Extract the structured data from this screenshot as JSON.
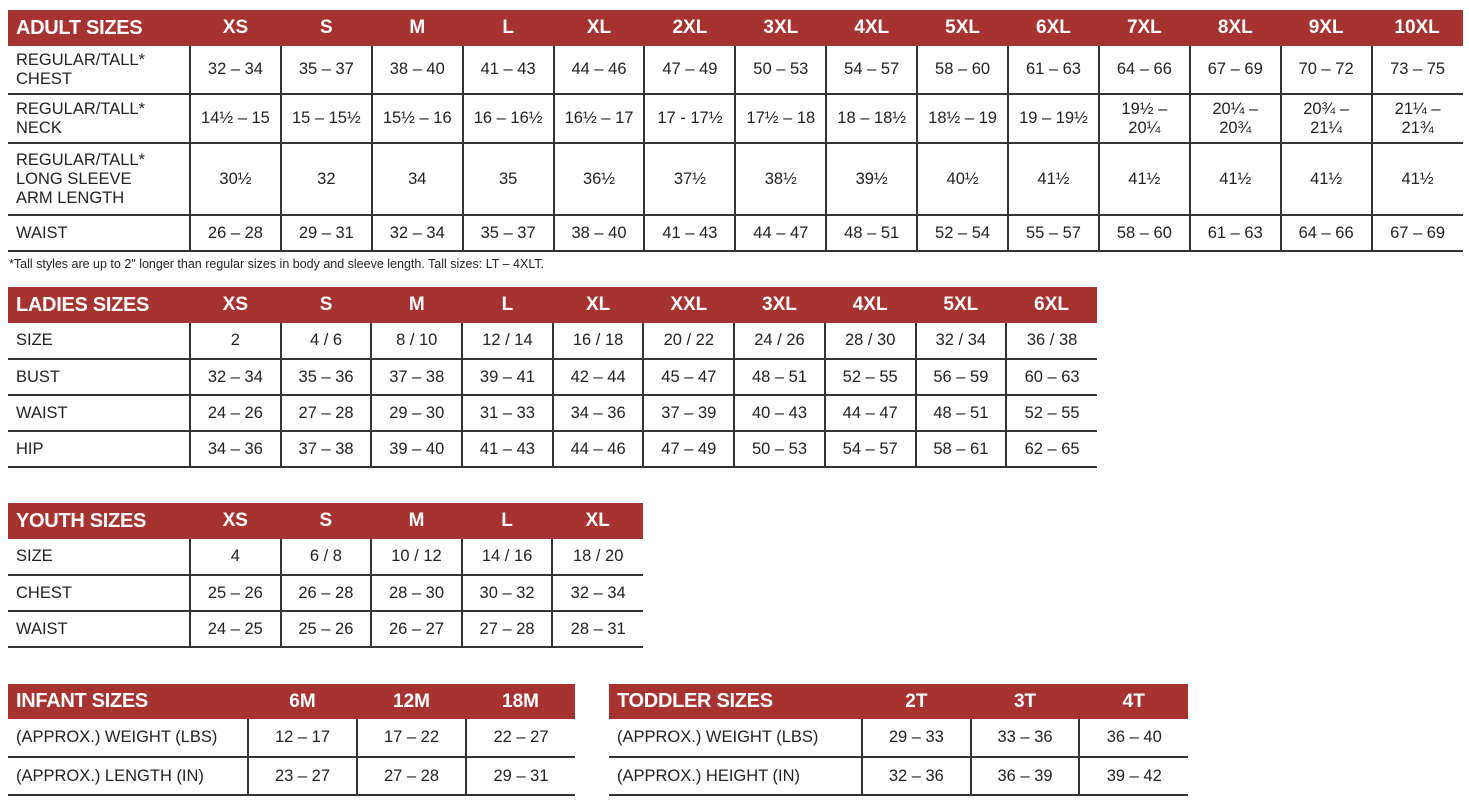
{
  "colors": {
    "header_bg": "#a6332f",
    "header_text": "#ffffff",
    "rule": "#333333"
  },
  "adult": {
    "title": "ADULT SIZES",
    "sizes": [
      "XS",
      "S",
      "M",
      "L",
      "XL",
      "2XL",
      "3XL",
      "4XL",
      "5XL",
      "6XL",
      "7XL",
      "8XL",
      "9XL",
      "10XL"
    ],
    "rows": [
      {
        "label": "REGULAR/TALL*\nCHEST",
        "values": [
          "32 – 34",
          "35 – 37",
          "38 – 40",
          "41 – 43",
          "44 – 46",
          "47 – 49",
          "50 – 53",
          "54 – 57",
          "58 – 60",
          "61 – 63",
          "64 – 66",
          "67 – 69",
          "70 – 72",
          "73 – 75"
        ]
      },
      {
        "label": "REGULAR/TALL*\nNECK",
        "values": [
          "14½ – 15",
          "15 – 15½",
          "15½ – 16",
          "16 – 16½",
          "16½ – 17",
          "17 - 17½",
          "17½ – 18",
          "18 – 18½",
          "18½ – 19",
          "19 – 19½",
          "19½ –\n20¼",
          "20¼ –\n20¾",
          "20¾ –\n21¼",
          "21¼ –\n21¾"
        ]
      },
      {
        "label": "REGULAR/TALL*\nLONG SLEEVE\nARM LENGTH",
        "values": [
          "30½",
          "32",
          "34",
          "35",
          "36½",
          "37½",
          "38½",
          "39½",
          "40½",
          "41½",
          "41½",
          "41½",
          "41½",
          "41½"
        ]
      },
      {
        "label": "WAIST",
        "values": [
          "26 – 28",
          "29 – 31",
          "32 – 34",
          "35 – 37",
          "38 – 40",
          "41 – 43",
          "44 – 47",
          "48 – 51",
          "52 – 54",
          "55 – 57",
          "58 – 60",
          "61 – 63",
          "64 – 66",
          "67 – 69"
        ]
      }
    ],
    "footnote": "*Tall styles are up to 2\" longer than regular sizes in body and sleeve length. Tall sizes: LT – 4XLT."
  },
  "ladies": {
    "title": "LADIES SIZES",
    "sizes": [
      "XS",
      "S",
      "M",
      "L",
      "XL",
      "XXL",
      "3XL",
      "4XL",
      "5XL",
      "6XL"
    ],
    "rows": [
      {
        "label": "SIZE",
        "values": [
          "2",
          "4 / 6",
          "8 / 10",
          "12 / 14",
          "16 / 18",
          "20 / 22",
          "24 / 26",
          "28 / 30",
          "32 / 34",
          "36 / 38"
        ]
      },
      {
        "label": "BUST",
        "values": [
          "32 – 34",
          "35 – 36",
          "37 – 38",
          "39 – 41",
          "42 – 44",
          "45 – 47",
          "48 – 51",
          "52 – 55",
          "56 – 59",
          "60 – 63"
        ]
      },
      {
        "label": "WAIST",
        "values": [
          "24 – 26",
          "27 – 28",
          "29 – 30",
          "31 – 33",
          "34 – 36",
          "37 – 39",
          "40 – 43",
          "44 – 47",
          "48 – 51",
          "52 – 55"
        ]
      },
      {
        "label": "HIP",
        "values": [
          "34 – 36",
          "37 – 38",
          "39 – 40",
          "41 – 43",
          "44 – 46",
          "47 – 49",
          "50 – 53",
          "54 – 57",
          "58 – 61",
          "62 – 65"
        ]
      }
    ]
  },
  "youth": {
    "title": "YOUTH SIZES",
    "sizes": [
      "XS",
      "S",
      "M",
      "L",
      "XL"
    ],
    "rows": [
      {
        "label": "SIZE",
        "values": [
          "4",
          "6 / 8",
          "10 / 12",
          "14 / 16",
          "18 / 20"
        ]
      },
      {
        "label": "CHEST",
        "values": [
          "25 – 26",
          "26 – 28",
          "28 – 30",
          "30 – 32",
          "32 – 34"
        ]
      },
      {
        "label": "WAIST",
        "values": [
          "24 – 25",
          "25 – 26",
          "26 – 27",
          "27 – 28",
          "28 – 31"
        ]
      }
    ]
  },
  "infant": {
    "title": "INFANT SIZES",
    "sizes": [
      "6M",
      "12M",
      "18M"
    ],
    "rows": [
      {
        "label": "(APPROX.) WEIGHT (LBS)",
        "values": [
          "12 – 17",
          "17 – 22",
          "22 – 27"
        ]
      },
      {
        "label": "(APPROX.) LENGTH (IN)",
        "values": [
          "23 – 27",
          "27 – 28",
          "29 – 31"
        ]
      }
    ]
  },
  "toddler": {
    "title": "TODDLER SIZES",
    "sizes": [
      "2T",
      "3T",
      "4T"
    ],
    "rows": [
      {
        "label": "(APPROX.) WEIGHT (LBS)",
        "values": [
          "29 – 33",
          "33 – 36",
          "36 – 40"
        ]
      },
      {
        "label": "(APPROX.) HEIGHT (IN)",
        "values": [
          "32 – 36",
          "36 – 39",
          "39 – 42"
        ]
      }
    ]
  }
}
